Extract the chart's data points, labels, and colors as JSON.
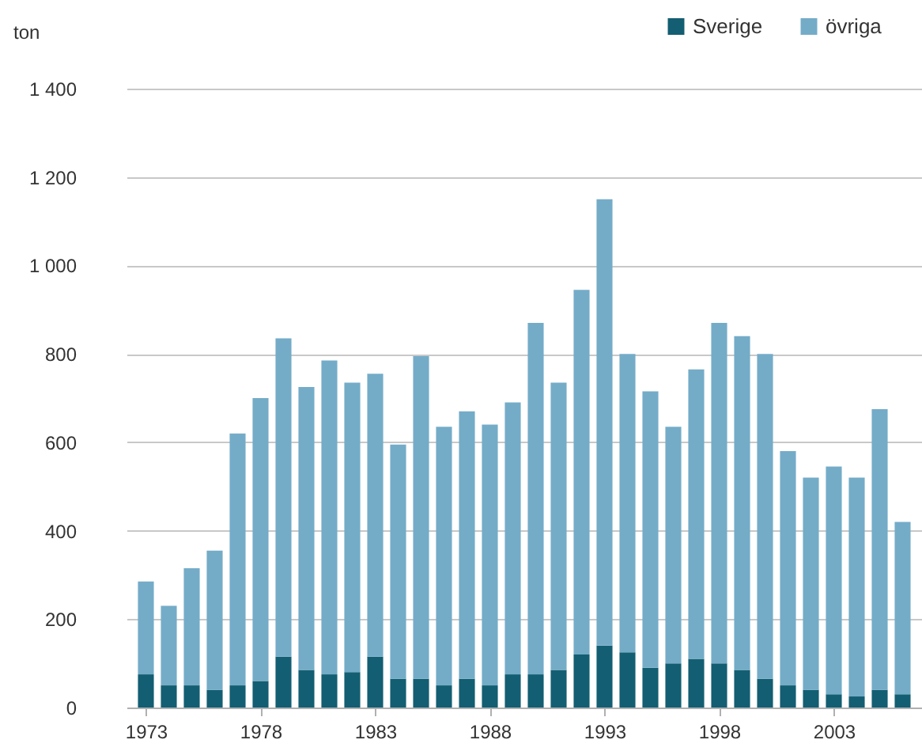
{
  "chart_data": {
    "type": "bar",
    "stacked": true,
    "ylabel": "ton",
    "grid": "y",
    "legend": "top right",
    "x": [
      1973,
      1974,
      1975,
      1976,
      1977,
      1978,
      1979,
      1980,
      1981,
      1982,
      1983,
      1984,
      1985,
      1986,
      1987,
      1988,
      1989,
      1990,
      1991,
      1992,
      1993,
      1994,
      1995,
      1996,
      1997,
      1998,
      1999,
      2000,
      2001,
      2002,
      2003,
      2004,
      2005,
      2006
    ],
    "xlim": [
      1972.5,
      2006.5
    ],
    "xticks": [
      1973,
      1978,
      1983,
      1988,
      1993,
      1998,
      2003
    ],
    "ylim": [
      0,
      1400
    ],
    "yticks": [
      0,
      200,
      400,
      600,
      800,
      {
        "value": 1000,
        "label": "1 000"
      },
      {
        "value": 1200,
        "label": "1 200"
      },
      {
        "value": 1400,
        "label": "1 400"
      }
    ],
    "series": [
      {
        "name": "Sverige",
        "color": "#135e72",
        "values": [
          75,
          50,
          50,
          40,
          50,
          60,
          115,
          85,
          75,
          80,
          115,
          65,
          65,
          50,
          65,
          50,
          75,
          75,
          85,
          120,
          140,
          125,
          90,
          100,
          110,
          100,
          85,
          65,
          50,
          40,
          30,
          25,
          40,
          30
        ]
      },
      {
        "name": "övriga",
        "color": "#74acc8",
        "values": [
          210,
          180,
          265,
          315,
          570,
          640,
          720,
          640,
          710,
          655,
          640,
          530,
          730,
          585,
          605,
          590,
          615,
          795,
          650,
          825,
          1010,
          675,
          625,
          535,
          655,
          770,
          755,
          735,
          530,
          480,
          515,
          495,
          635,
          390
        ]
      }
    ]
  }
}
